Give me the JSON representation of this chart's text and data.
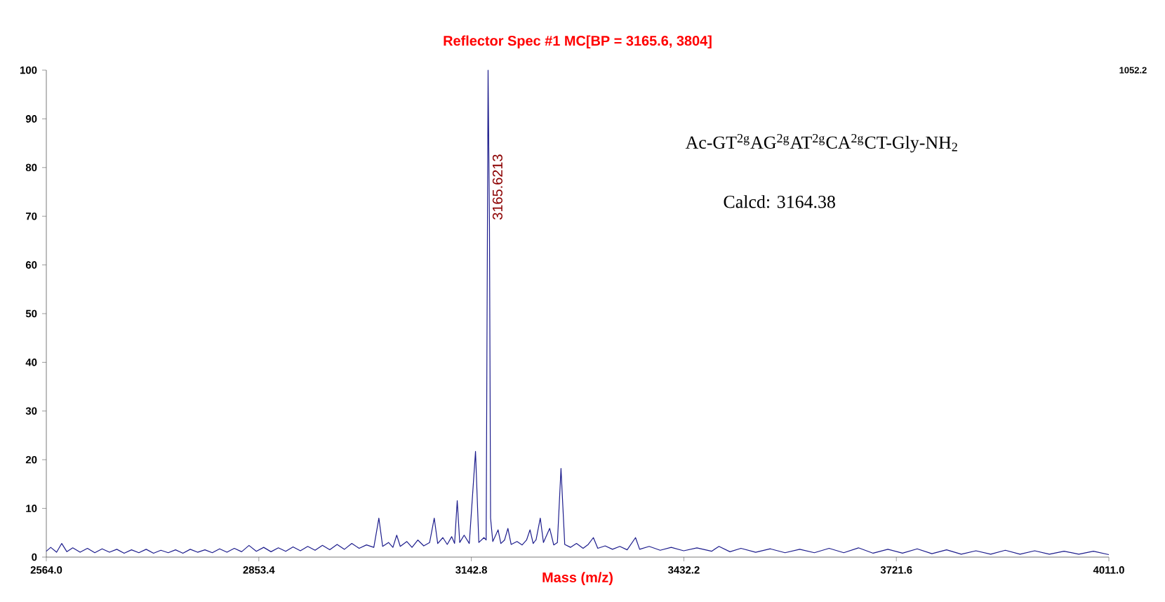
{
  "chart_data": {
    "type": "line",
    "title": "Reflector Spec #1 MC[BP = 3165.6, 3804]",
    "xlabel": "Mass (m/z)",
    "x": [
      2564,
      2570,
      2578,
      2585,
      2592,
      2600,
      2610,
      2620,
      2630,
      2640,
      2650,
      2660,
      2670,
      2680,
      2690,
      2700,
      2710,
      2720,
      2730,
      2740,
      2750,
      2760,
      2770,
      2780,
      2790,
      2800,
      2810,
      2820,
      2830,
      2840,
      2850,
      2860,
      2870,
      2880,
      2890,
      2900,
      2910,
      2920,
      2930,
      2940,
      2950,
      2960,
      2970,
      2980,
      2990,
      3000,
      3010,
      3016.9,
      3022,
      3030,
      3036,
      3041.2,
      3046,
      3055,
      3062,
      3070,
      3078,
      3086,
      3092.3,
      3097,
      3104,
      3110,
      3116,
      3120,
      3123.6,
      3127,
      3133,
      3140,
      3148.5,
      3153,
      3160,
      3163,
      3165.6,
      3167.5,
      3169,
      3172,
      3176,
      3179.2,
      3183,
      3188,
      3192.6,
      3197,
      3205,
      3212,
      3218,
      3222.7,
      3227,
      3231,
      3236.7,
      3241,
      3249.5,
      3255,
      3260,
      3264.9,
      3270,
      3278,
      3286,
      3295,
      3302,
      3309,
      3315,
      3325,
      3335,
      3345,
      3355,
      3366.4,
      3372,
      3385,
      3400,
      3415,
      3432,
      3450,
      3470,
      3480,
      3495,
      3510,
      3530,
      3550,
      3570,
      3590,
      3610,
      3630,
      3650,
      3670,
      3690,
      3710,
      3730,
      3750,
      3770,
      3790,
      3810,
      3830,
      3850,
      3870,
      3890,
      3910,
      3930,
      3950,
      3970,
      3990,
      4011
    ],
    "values": [
      1.2,
      2.0,
      1.0,
      2.8,
      1.1,
      1.9,
      1.0,
      1.8,
      0.9,
      1.7,
      1.0,
      1.6,
      0.8,
      1.5,
      0.9,
      1.6,
      0.8,
      1.4,
      0.9,
      1.5,
      0.8,
      1.6,
      1.0,
      1.5,
      0.9,
      1.7,
      1.0,
      1.8,
      1.1,
      2.4,
      1.2,
      2.0,
      1.1,
      1.9,
      1.2,
      2.1,
      1.3,
      2.2,
      1.4,
      2.4,
      1.5,
      2.6,
      1.6,
      2.8,
      1.8,
      2.5,
      2.0,
      8.0,
      2.2,
      3.0,
      2.0,
      4.5,
      2.2,
      3.2,
      2.0,
      3.5,
      2.3,
      3.0,
      8.0,
      2.8,
      4.0,
      2.6,
      4.2,
      2.8,
      11.6,
      3.0,
      4.5,
      2.8,
      21.7,
      3.0,
      4.0,
      3.5,
      100,
      68,
      8,
      3.2,
      4.5,
      5.6,
      2.8,
      3.5,
      5.9,
      2.6,
      3.2,
      2.5,
      3.5,
      5.6,
      2.8,
      3.6,
      8.0,
      3.0,
      5.9,
      2.5,
      3.0,
      18.2,
      2.6,
      2.0,
      2.8,
      1.8,
      2.6,
      4.0,
      1.8,
      2.3,
      1.6,
      2.2,
      1.5,
      4.0,
      1.6,
      2.2,
      1.4,
      2.0,
      1.3,
      1.9,
      1.2,
      2.2,
      1.1,
      1.8,
      1.0,
      1.7,
      0.9,
      1.6,
      0.9,
      1.8,
      0.9,
      1.9,
      0.8,
      1.6,
      0.8,
      1.7,
      0.7,
      1.5,
      0.6,
      1.3,
      0.6,
      1.4,
      0.6,
      1.3,
      0.6,
      1.2,
      0.6,
      1.2,
      0.5
    ],
    "color": "#1c1c8c",
    "xlim": [
      2564.0,
      4011.0
    ],
    "xticks": [
      {
        "value": 2564.0,
        "label": "2564.0"
      },
      {
        "value": 2853.4,
        "label": "2853.4"
      },
      {
        "value": 3142.8,
        "label": "3142.8"
      },
      {
        "value": 3432.2,
        "label": "3432.2"
      },
      {
        "value": 3721.6,
        "label": "3721.6"
      },
      {
        "value": 4011.0,
        "label": "4011.0"
      }
    ],
    "ylim": [
      0,
      100
    ],
    "yticks": [
      0,
      10,
      20,
      30,
      40,
      50,
      60,
      70,
      80,
      90,
      100
    ],
    "annotations": [
      {
        "text": "3165.6213",
        "x": 3165.6213,
        "y": 76
      },
      "Ac-GT$^{2g}$AG$^{2g}$AT$^{2g}$CA$^{2g}$CT-Gly-NH$_{2}$",
      "Calcd: 3164.38",
      "1052.2"
    ],
    "grid": false,
    "marker": "none",
    "line_style": "solid"
  }
}
